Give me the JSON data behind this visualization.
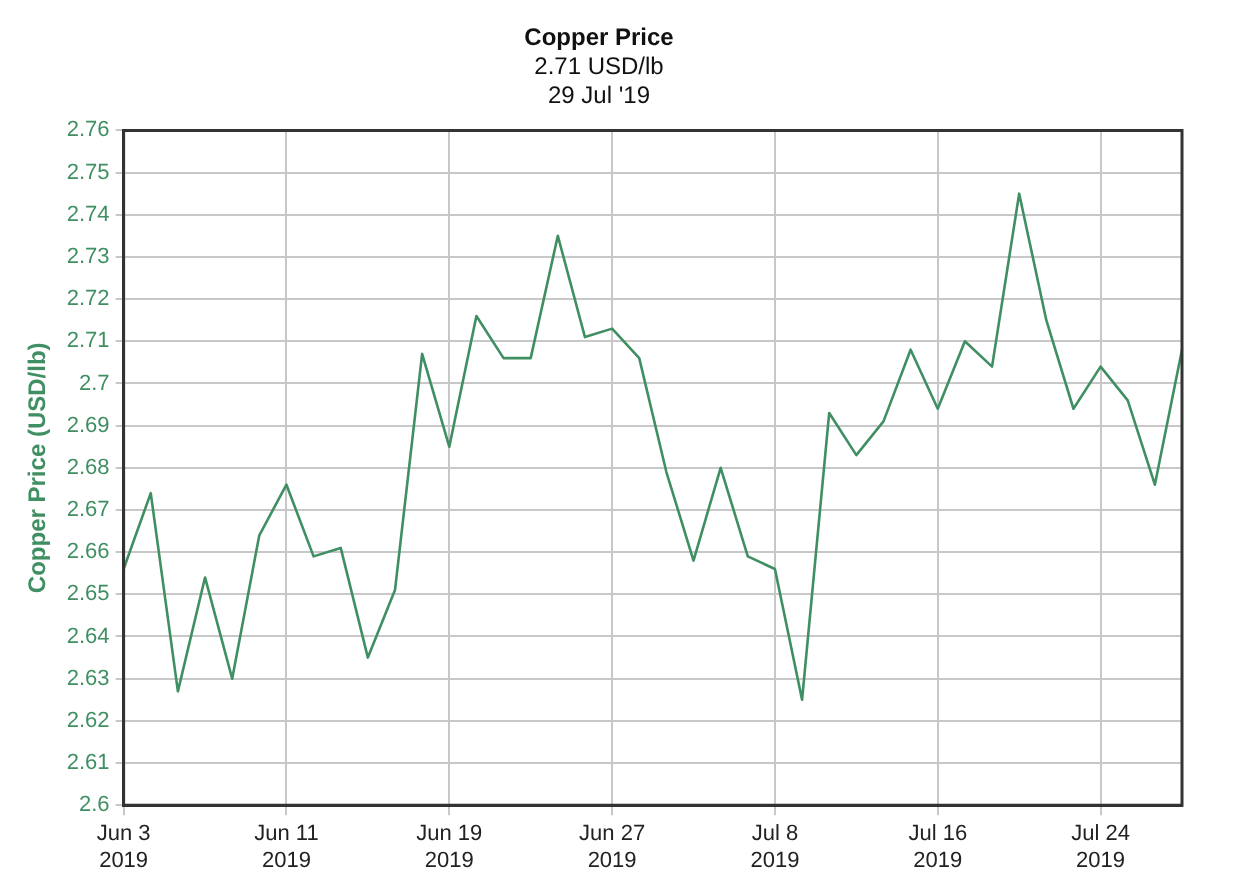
{
  "chart_data": {
    "type": "line",
    "title": "Copper Price",
    "subtitle": "2.71 USD/lb",
    "annotations": [
      "29 Jul '19"
    ],
    "ylabel": "Copper Price (USD/lb)",
    "categories": [
      "Jun 3\n2019",
      null,
      null,
      null,
      null,
      null,
      "Jun 11\n2019",
      null,
      null,
      null,
      null,
      null,
      "Jun 19\n2019",
      null,
      null,
      null,
      null,
      null,
      "Jun 27\n2019",
      null,
      null,
      null,
      null,
      null,
      "Jul 8\n2019",
      null,
      null,
      null,
      null,
      null,
      "Jul 16\n2019",
      null,
      null,
      null,
      null,
      null,
      "Jul 24\n2019",
      null,
      null,
      null
    ],
    "series": [
      {
        "color": "#3f8f62",
        "values": [
          2.656,
          2.674,
          2.627,
          2.654,
          2.63,
          2.664,
          2.676,
          2.659,
          2.661,
          2.635,
          2.651,
          2.707,
          2.685,
          2.716,
          2.706,
          2.706,
          2.735,
          2.711,
          2.713,
          2.706,
          2.679,
          2.658,
          2.68,
          2.659,
          2.656,
          2.625,
          2.693,
          2.683,
          2.691,
          2.708,
          2.694,
          2.71,
          2.704,
          2.745,
          2.715,
          2.694,
          2.704,
          2.696,
          2.676,
          2.708
        ]
      }
    ],
    "ylim": [
      2.6,
      2.76
    ],
    "yticks": [
      2.6,
      2.61,
      2.62,
      2.63,
      2.64,
      2.65,
      2.66,
      2.67,
      2.68,
      2.69,
      2.7,
      2.71,
      2.72,
      2.73,
      2.74,
      2.75,
      2.76
    ],
    "grid": true,
    "legend": false,
    "marker": "none",
    "line_style": "solid"
  }
}
